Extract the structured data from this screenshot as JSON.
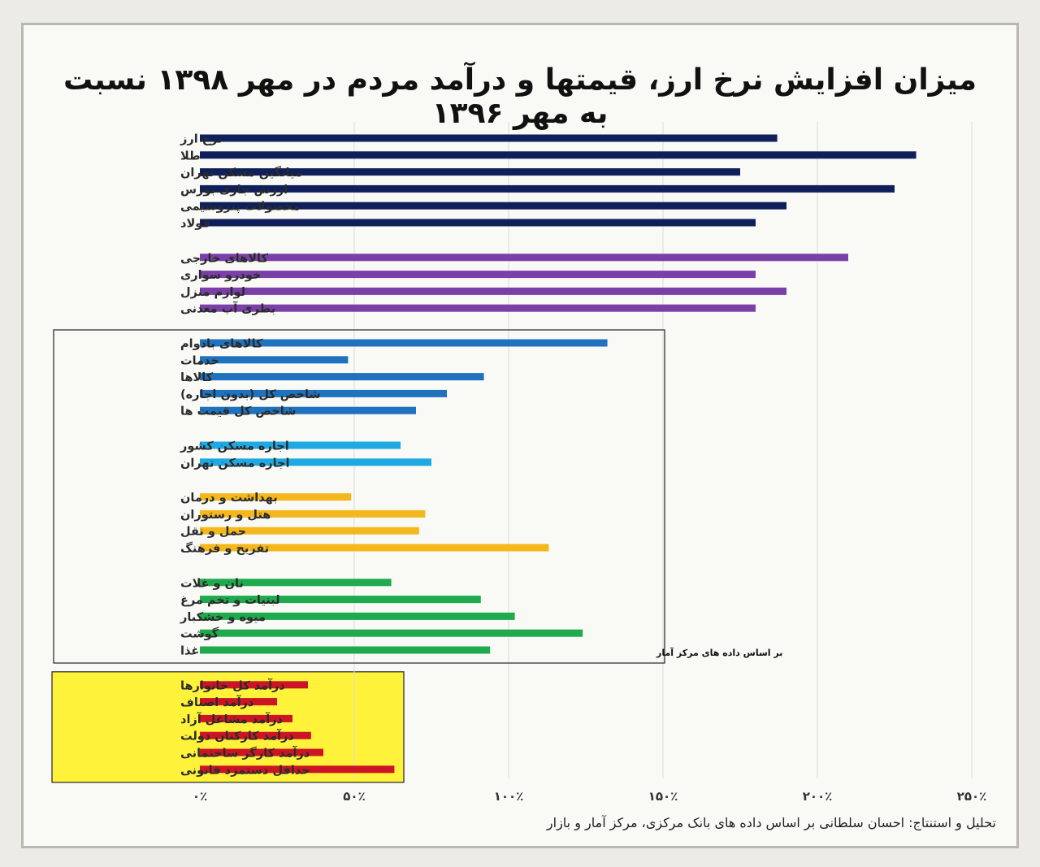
{
  "chart_data": {
    "type": "bar",
    "orientation": "horizontal",
    "title": "میزان افزایش نرخ ارز، قیمتها و درآمد مردم در مهر ۱۳۹۸ نسبت به مهر ۱۳۹۶",
    "xlim": [
      0,
      250
    ],
    "x_ticks": [
      {
        "value": 0,
        "label": "۰٪"
      },
      {
        "value": 50,
        "label": "۵۰٪"
      },
      {
        "value": 100,
        "label": "۱۰۰٪"
      },
      {
        "value": 150,
        "label": "۱۵۰٪"
      },
      {
        "value": 200,
        "label": "۲۰۰٪"
      },
      {
        "value": 250,
        "label": "۲۵۰٪"
      }
    ],
    "grid": "vertical",
    "boxed_group_note": "بر اساس داده های مرکز آمار",
    "groups": [
      {
        "color": "#0e1f5b",
        "items": [
          {
            "label": "نرخ ارز",
            "value": 187
          },
          {
            "label": "طلا",
            "value": 232
          },
          {
            "label": "میانگین مسکن تهران",
            "value": 175
          },
          {
            "label": "ارزش جاری بورس",
            "value": 225
          },
          {
            "label": "محصولات پتروشیمی",
            "value": 190
          },
          {
            "label": "فولاد",
            "value": 180
          }
        ]
      },
      {
        "color": "#7b3fa8",
        "items": [
          {
            "label": "کالاهای خارجی",
            "value": 210
          },
          {
            "label": "خودرو سواری",
            "value": 180
          },
          {
            "label": "لوازم منزل",
            "value": 190
          },
          {
            "label": "بطری آب معدنی",
            "value": 180
          }
        ]
      },
      {
        "color": "#1f72bd",
        "boxed": true,
        "items": [
          {
            "label": "کالاهای بادوام",
            "value": 132
          },
          {
            "label": "خدمات",
            "value": 48
          },
          {
            "label": "کالاها",
            "value": 92
          },
          {
            "label": "شاخص کل (بدون اجاره)",
            "value": 80
          },
          {
            "label": "شاخص کل قیمت ها",
            "value": 70
          }
        ]
      },
      {
        "color": "#1ea9e3",
        "boxed": true,
        "items": [
          {
            "label": "اجاره مسکن کشور",
            "value": 65
          },
          {
            "label": "اجاره مسکن تهران",
            "value": 75
          }
        ]
      },
      {
        "color": "#f4b81c",
        "boxed": true,
        "items": [
          {
            "label": "بهداشت و درمان",
            "value": 49
          },
          {
            "label": "هتل و رستوران",
            "value": 73
          },
          {
            "label": "حمل و نقل",
            "value": 71
          },
          {
            "label": "تفریح و فرهنگ",
            "value": 113
          }
        ]
      },
      {
        "color": "#1faa4d",
        "boxed": true,
        "items": [
          {
            "label": "نان و غلات",
            "value": 62
          },
          {
            "label": "لبنیات و تخم مرغ",
            "value": 91
          },
          {
            "label": "میوه و خشکبار",
            "value": 102
          },
          {
            "label": "گوشت",
            "value": 124
          },
          {
            "label": "غذا",
            "value": 94
          }
        ]
      },
      {
        "color": "#cc1424",
        "highlight": "#fff23a",
        "items": [
          {
            "label": "درآمد کل خانوارها",
            "value": 35
          },
          {
            "label": "درآمد اصناف",
            "value": 25
          },
          {
            "label": "درآمد مشاغل آزاد",
            "value": 30
          },
          {
            "label": "درآمد کارکنان دولت",
            "value": 36
          },
          {
            "label": "درآمد کارگر ساختمانی",
            "value": 40
          },
          {
            "label": "حداقل دستمزد قانونی",
            "value": 63
          }
        ]
      }
    ]
  },
  "footer_text": "تحلیل و استنتاج:  احسان سلطانی بر اساس داده های بانک مرکزی، مرکز آمار و بازار"
}
